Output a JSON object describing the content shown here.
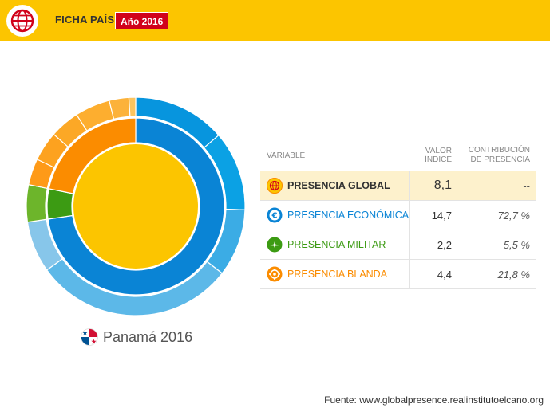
{
  "header": {
    "title": "FICHA PAÍS",
    "year_badge": "Año 2016",
    "accent": "#fcc500",
    "badge_color": "#d1021b"
  },
  "chart_data": {
    "type": "pie",
    "rings": [
      {
        "ring": "center",
        "slices": [
          {
            "category": "Presencia global",
            "value": 100,
            "color": "#fcc500"
          }
        ]
      },
      {
        "ring": "middle",
        "slices": [
          {
            "category": "Presencia económica",
            "value": 72.7,
            "color": "#0a84d5"
          },
          {
            "category": "Presencia militar",
            "value": 5.5,
            "color": "#3c9b13"
          },
          {
            "category": "Presencia blanda",
            "value": 21.8,
            "color": "#fb8c00"
          }
        ]
      },
      {
        "ring": "outer",
        "slices": [
          {
            "group": "Presencia económica",
            "value": 13.7,
            "color": "#0795de"
          },
          {
            "group": "Presencia económica",
            "value": 11.8,
            "color": "#0ba1e4"
          },
          {
            "group": "Presencia económica",
            "value": 10.0,
            "color": "#3bace5"
          },
          {
            "group": "Presencia económica",
            "value": 29.6,
            "color": "#5cb8e8"
          },
          {
            "group": "Presencia económica",
            "value": 7.6,
            "color": "#87c6ea"
          },
          {
            "group": "Presencia militar",
            "value": 5.5,
            "color": "#6db52b"
          },
          {
            "group": "Presencia blanda",
            "value": 3.9,
            "color": "#fe9a18"
          },
          {
            "group": "Presencia blanda",
            "value": 4.4,
            "color": "#fda21f"
          },
          {
            "group": "Presencia blanda",
            "value": 4.4,
            "color": "#fca826"
          },
          {
            "group": "Presencia blanda",
            "value": 5.2,
            "color": "#fdae2f"
          },
          {
            "group": "Presencia blanda",
            "value": 2.9,
            "color": "#fcb23a"
          },
          {
            "group": "Presencia blanda",
            "value": 1.0,
            "color": "#fcc45e"
          }
        ]
      }
    ]
  },
  "country": {
    "label": "Panamá 2016",
    "flag_icon": "panama-flag-icon"
  },
  "table": {
    "headers": {
      "variable": "VARIABLE",
      "valor": "VALOR ÍNDICE",
      "contribucion": "CONTRIBUCIÓN DE PRESENCIA"
    },
    "rows": [
      {
        "label": "PRESENCIA GLOBAL",
        "value": "8,1",
        "contribution": "--",
        "color": "#333333",
        "icon": "globe-icon"
      },
      {
        "label": "PRESENCIA ECONÓMICA",
        "value": "14,7",
        "contribution": "72,7 %",
        "color": "#0a84d5",
        "icon": "euro-icon"
      },
      {
        "label": "PRESENCIA MILITAR",
        "value": "2,2",
        "contribution": "5,5 %",
        "color": "#3c9b13",
        "icon": "plane-icon"
      },
      {
        "label": "PRESENCIA BLANDA",
        "value": "4,4",
        "contribution": "21,8 %",
        "color": "#fb8c00",
        "icon": "soft-power-icon"
      }
    ]
  },
  "source": "Fuente: www.globalpresence.realinstitutoelcano.org"
}
